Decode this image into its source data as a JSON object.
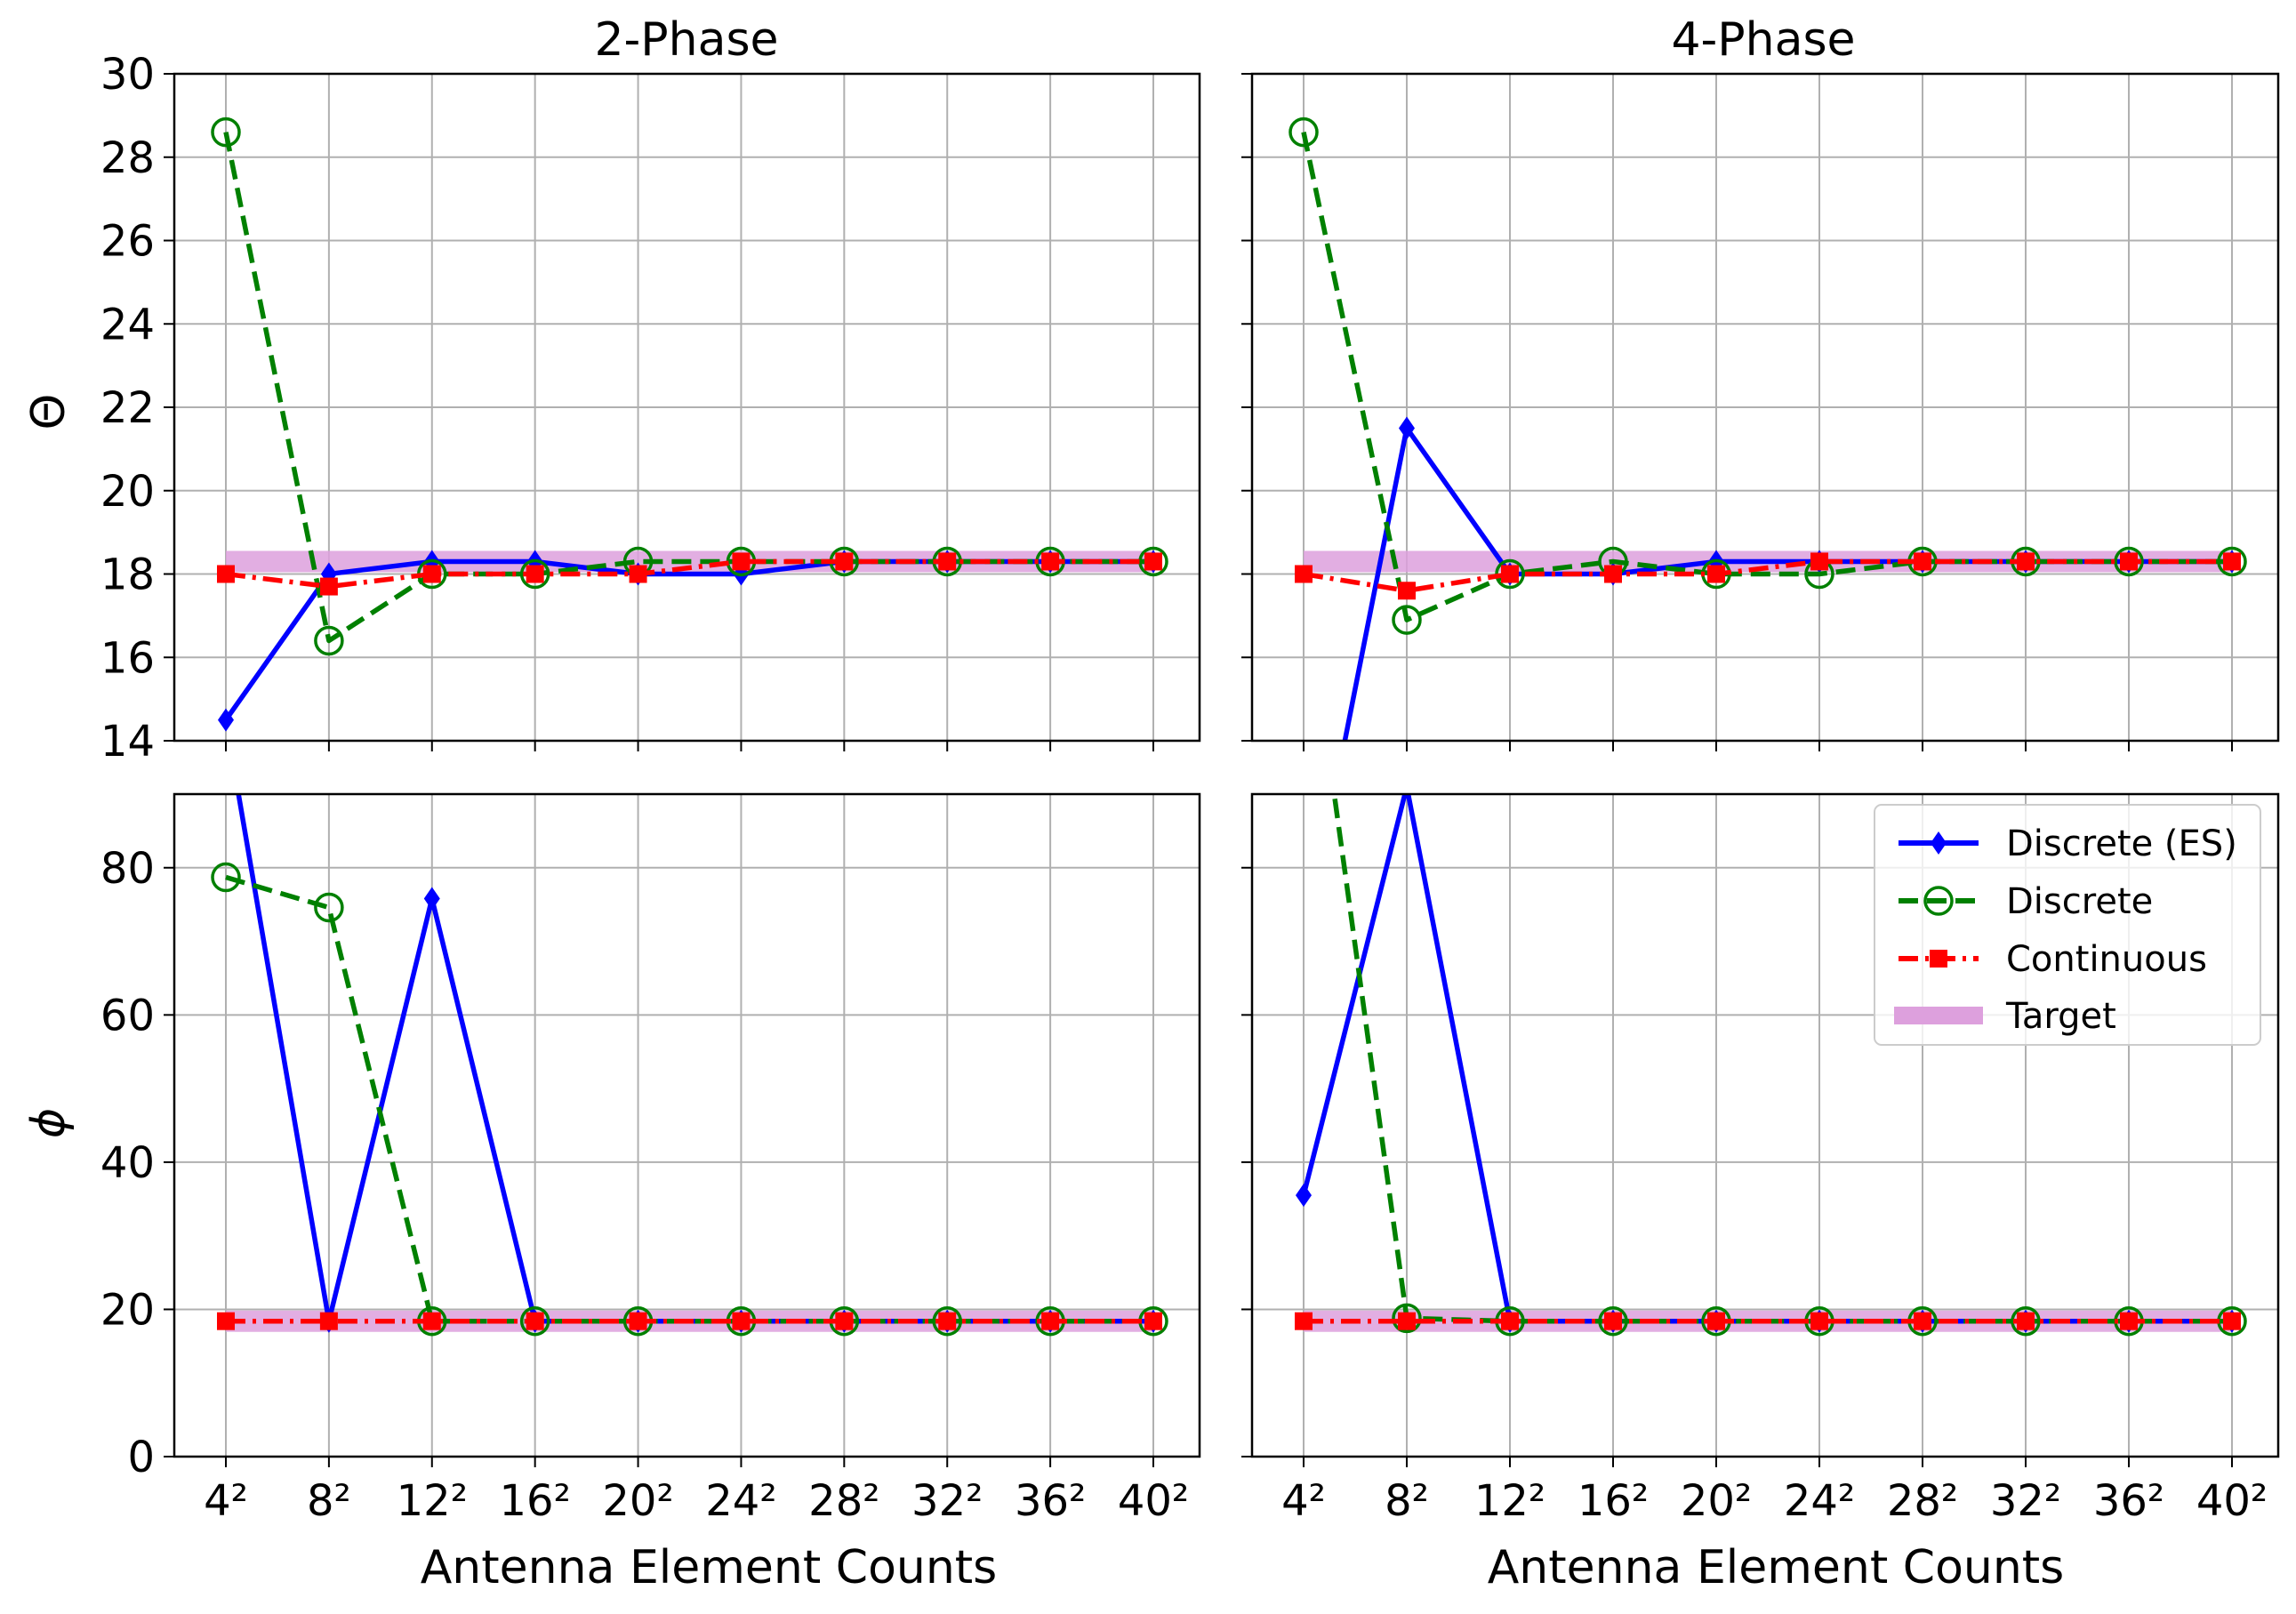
{
  "figure": {
    "titles": [
      "2-Phase",
      "4-Phase"
    ],
    "xlabel": "Antenna Element Counts",
    "ylabels": [
      "Θ",
      "ϕ"
    ]
  },
  "legend": {
    "placement": "upper-right",
    "panel": "4-Phase ϕ",
    "entries": [
      {
        "label": "Discrete (ES)",
        "color": "#0000ff",
        "style": "solid",
        "marker": "diamond"
      },
      {
        "label": "Discrete",
        "color": "#008000",
        "style": "dashed",
        "marker": "open-circle"
      },
      {
        "label": "Continuous",
        "color": "#ff0000",
        "style": "dashdot",
        "marker": "square"
      },
      {
        "label": "Target",
        "color": "#dda0dd",
        "style": "band",
        "marker": "none"
      }
    ]
  },
  "chart_data": [
    {
      "type": "line",
      "title": "2-Phase",
      "ylabel": "Θ",
      "xlabel": "",
      "categories": [
        "4²",
        "8²",
        "12²",
        "16²",
        "20²",
        "24²",
        "28²",
        "32²",
        "36²",
        "40²"
      ],
      "ylim": [
        14,
        30
      ],
      "yticks": [
        14,
        16,
        18,
        20,
        22,
        24,
        26,
        28,
        30
      ],
      "grid": true,
      "series": [
        {
          "name": "Discrete (ES)",
          "values": [
            14.5,
            18.0,
            18.3,
            18.3,
            18.0,
            18.0,
            18.3,
            18.3,
            18.3,
            18.3
          ]
        },
        {
          "name": "Discrete",
          "values": [
            28.6,
            16.4,
            18.0,
            18.0,
            18.3,
            18.3,
            18.3,
            18.3,
            18.3,
            18.3
          ]
        },
        {
          "name": "Continuous",
          "values": [
            18.0,
            17.7,
            18.0,
            18.0,
            18.0,
            18.3,
            18.3,
            18.3,
            18.3,
            18.3
          ]
        },
        {
          "name": "Target",
          "values": [
            18.3,
            18.3,
            18.3,
            18.3,
            18.3,
            18.3,
            18.3,
            18.3,
            18.3,
            18.3
          ]
        }
      ]
    },
    {
      "type": "line",
      "title": "4-Phase",
      "ylabel": "",
      "xlabel": "",
      "categories": [
        "4²",
        "8²",
        "12²",
        "16²",
        "20²",
        "24²",
        "28²",
        "32²",
        "36²",
        "40²"
      ],
      "ylim": [
        14,
        30
      ],
      "yticks": [
        14,
        16,
        18,
        20,
        22,
        24,
        26,
        28,
        30
      ],
      "grid": true,
      "series": [
        {
          "name": "Discrete (ES)",
          "values": [
            9.0,
            21.5,
            18.0,
            18.0,
            18.3,
            18.3,
            18.3,
            18.3,
            18.3,
            18.3
          ]
        },
        {
          "name": "Discrete",
          "values": [
            28.6,
            16.9,
            18.0,
            18.3,
            18.0,
            18.0,
            18.3,
            18.3,
            18.3,
            18.3
          ]
        },
        {
          "name": "Continuous",
          "values": [
            18.0,
            17.6,
            18.0,
            18.0,
            18.0,
            18.3,
            18.3,
            18.3,
            18.3,
            18.3
          ]
        },
        {
          "name": "Target",
          "values": [
            18.3,
            18.3,
            18.3,
            18.3,
            18.3,
            18.3,
            18.3,
            18.3,
            18.3,
            18.3
          ]
        }
      ]
    },
    {
      "type": "line",
      "title": "",
      "ylabel": "ϕ",
      "xlabel": "Antenna Element Counts",
      "categories": [
        "4²",
        "8²",
        "12²",
        "16²",
        "20²",
        "24²",
        "28²",
        "32²",
        "36²",
        "40²"
      ],
      "ylim": [
        0,
        90
      ],
      "yticks": [
        0,
        20,
        40,
        60,
        80
      ],
      "grid": true,
      "series": [
        {
          "name": "Discrete (ES)",
          "values": [
            100,
            18.4,
            75.8,
            18.4,
            18.4,
            18.4,
            18.4,
            18.4,
            18.4,
            18.4
          ]
        },
        {
          "name": "Discrete",
          "values": [
            78.7,
            74.6,
            18.4,
            18.4,
            18.4,
            18.4,
            18.4,
            18.4,
            18.4,
            18.4
          ]
        },
        {
          "name": "Continuous",
          "values": [
            18.4,
            18.4,
            18.4,
            18.4,
            18.4,
            18.4,
            18.4,
            18.4,
            18.4,
            18.4
          ]
        },
        {
          "name": "Target",
          "values": [
            18.4,
            18.4,
            18.4,
            18.4,
            18.4,
            18.4,
            18.4,
            18.4,
            18.4,
            18.4
          ]
        }
      ]
    },
    {
      "type": "line",
      "title": "",
      "ylabel": "",
      "xlabel": "Antenna Element Counts",
      "categories": [
        "4²",
        "8²",
        "12²",
        "16²",
        "20²",
        "24²",
        "28²",
        "32²",
        "36²",
        "40²"
      ],
      "ylim": [
        0,
        90
      ],
      "yticks": [
        0,
        20,
        40,
        60,
        80
      ],
      "grid": true,
      "series": [
        {
          "name": "Discrete (ES)",
          "values": [
            35.5,
            91.0,
            18.4,
            18.4,
            18.4,
            18.4,
            18.4,
            18.4,
            18.4,
            18.4
          ]
        },
        {
          "name": "Discrete",
          "values": [
            120,
            18.8,
            18.4,
            18.4,
            18.4,
            18.4,
            18.4,
            18.4,
            18.4,
            18.4
          ]
        },
        {
          "name": "Continuous",
          "values": [
            18.4,
            18.4,
            18.4,
            18.4,
            18.4,
            18.4,
            18.4,
            18.4,
            18.4,
            18.4
          ]
        },
        {
          "name": "Target",
          "values": [
            18.4,
            18.4,
            18.4,
            18.4,
            18.4,
            18.4,
            18.4,
            18.4,
            18.4,
            18.4
          ]
        }
      ]
    }
  ]
}
